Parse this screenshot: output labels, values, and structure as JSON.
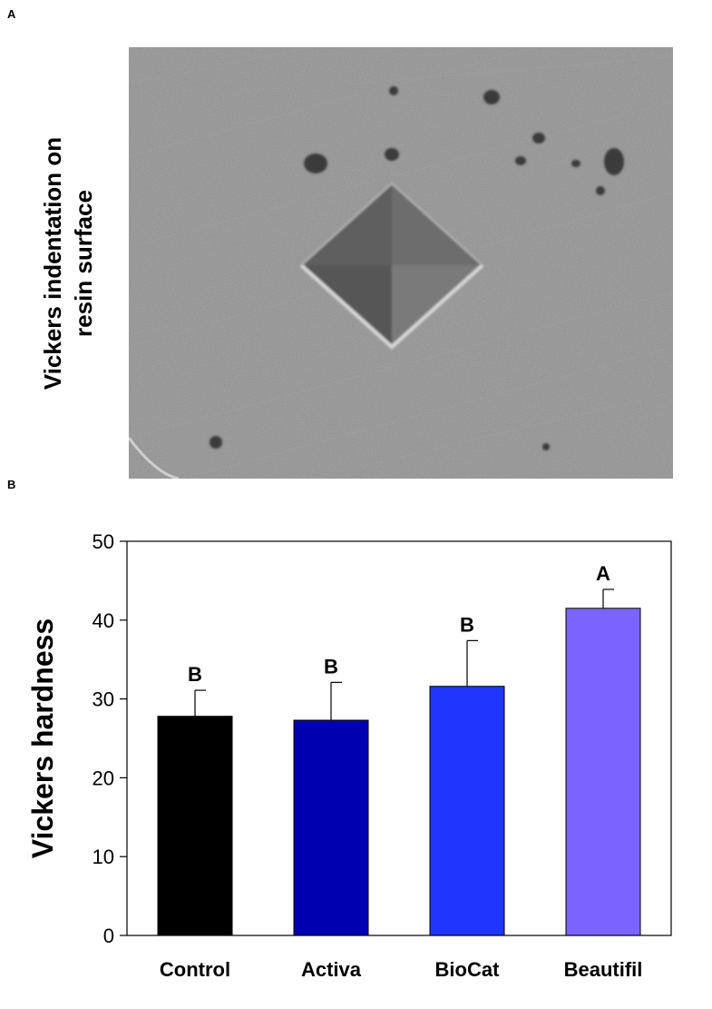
{
  "panels": {
    "a": {
      "letter": "A",
      "ylabel_line1": "Vickers indentation on",
      "ylabel_line2": "resin  surface"
    },
    "b": {
      "letter": "B"
    }
  },
  "chart_data": {
    "type": "bar",
    "title": "",
    "xlabel": "",
    "ylabel": "Vickers hardness",
    "ylim": [
      0,
      50
    ],
    "yticks": [
      0,
      10,
      20,
      30,
      40,
      50
    ],
    "grid": false,
    "categories": [
      "Control",
      "Activa",
      "BioCat",
      "Beautifil"
    ],
    "values": [
      27.8,
      27.3,
      31.6,
      41.5
    ],
    "errors": [
      3.3,
      4.8,
      5.8,
      2.4
    ],
    "significance": [
      "B",
      "B",
      "B",
      "A"
    ],
    "colors": [
      "#000000",
      "#0000b0",
      "#1f36ff",
      "#7b63ff"
    ]
  }
}
